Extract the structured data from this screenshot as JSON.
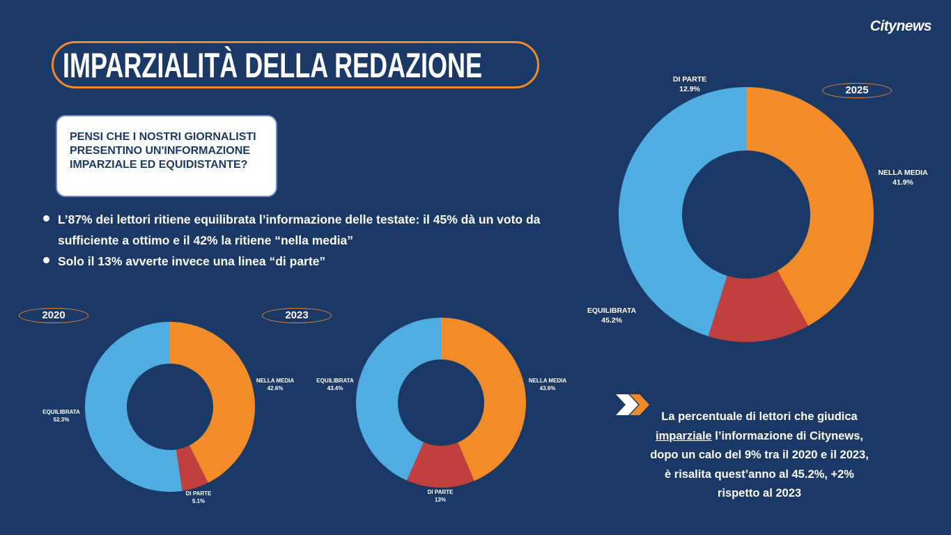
{
  "logo": "Citynews",
  "title": "IMPARZIALITÀ DELLA REDAZIONE",
  "question": "PENSI CHE I NOSTRI GIORNALISTI PRESENTINO UN'INFORMAZIONE IMPARZIALE ED EQUIDISTANTE?",
  "bullets": [
    "L’87% dei lettori ritiene equilibrata l’informazione delle testate: il 45% dà un voto da sufficiente a ottimo e il 42% la ritiene “nella media”",
    "Solo il 13% avverte invece una linea “di parte”"
  ],
  "note": {
    "line1": "La percentuale di lettori che giudica",
    "underlined": "imparziale",
    "line2_rest": " l’informazione di Citynews,",
    "line3": "dopo un calo del 9% tra il 2020 e il 2023,",
    "line4": "è risalita quest’anno al 45.2%, +2%",
    "line5": "rispetto al 2023"
  },
  "colors": {
    "background": "#1b3966",
    "nella_media": "#f28c28",
    "di_parte": "#c13f3c",
    "equilibrata": "#50ade2",
    "accent": "#f08a2a"
  },
  "chart_data": [
    {
      "type": "pie",
      "title": "2025",
      "labels": [
        "NELLA MEDIA",
        "DI PARTE",
        "EQUILIBRATA"
      ],
      "values": [
        41.9,
        12.9,
        45.2
      ],
      "value_labels": [
        "41.9%",
        "12.9%",
        "45.2%"
      ],
      "donut": true
    },
    {
      "type": "pie",
      "title": "2020",
      "labels": [
        "NELLA MEDIA",
        "DI PARTE",
        "EQUILIBRATA"
      ],
      "values": [
        42.6,
        5.1,
        52.3
      ],
      "value_labels": [
        "42.6%",
        "5.1%",
        "52.3%"
      ],
      "donut": true
    },
    {
      "type": "pie",
      "title": "2023",
      "labels": [
        "NELLA MEDIA",
        "DI PARTE",
        "EQUILIBRATA"
      ],
      "values": [
        43.6,
        13,
        43.4
      ],
      "value_labels": [
        "43.6%",
        "13%",
        "43.4%"
      ],
      "donut": true
    }
  ]
}
